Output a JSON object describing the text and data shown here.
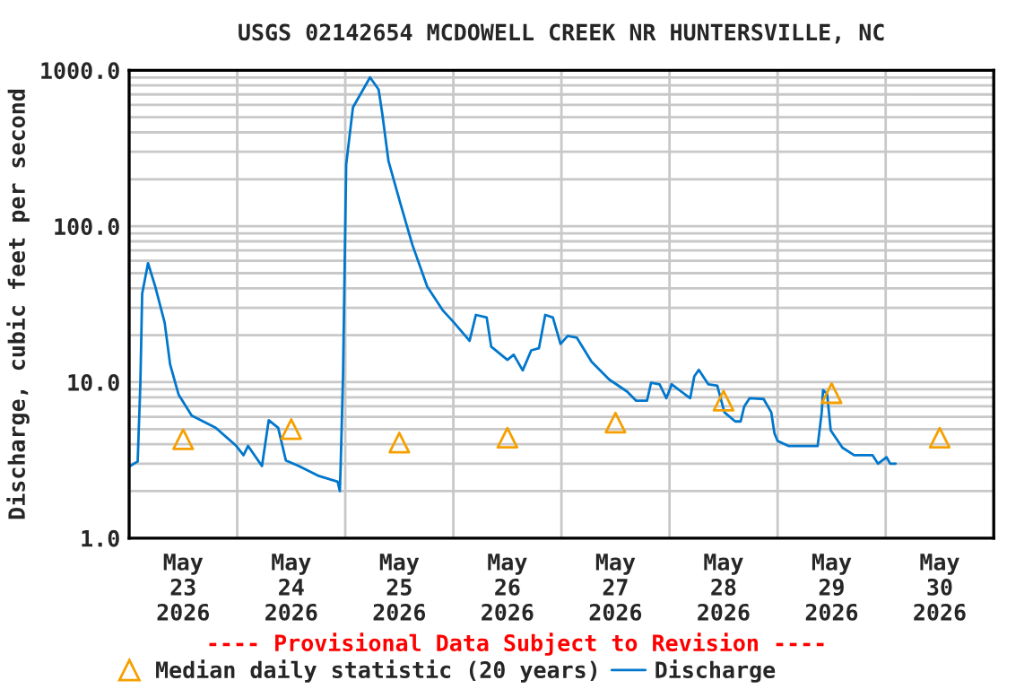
{
  "chart_data": {
    "type": "line",
    "title": "USGS 02142654 MCDOWELL CREEK NR HUNTERSVILLE, NC",
    "ylabel": "Discharge, cubic feet per second",
    "annotations": [
      "---- Provisional Data Subject to Revision ----"
    ],
    "log": "y",
    "xlim": [
      "2026-05-23T00:00",
      "2026-05-31T00:00"
    ],
    "xticks": [
      {
        "value": "2026-05-23T00:00",
        "label": null
      },
      {
        "value": "2026-05-23T12:00",
        "label": "May\n23\n2026"
      },
      {
        "value": "2026-05-24T00:00",
        "label": null
      },
      {
        "value": "2026-05-24T12:00",
        "label": "May\n24\n2026"
      },
      {
        "value": "2026-05-25T00:00",
        "label": null
      },
      {
        "value": "2026-05-25T12:00",
        "label": "May\n25\n2026"
      },
      {
        "value": "2026-05-26T00:00",
        "label": null
      },
      {
        "value": "2026-05-26T12:00",
        "label": "May\n26\n2026"
      },
      {
        "value": "2026-05-27T00:00",
        "label": null
      },
      {
        "value": "2026-05-27T12:00",
        "label": "May\n27\n2026"
      },
      {
        "value": "2026-05-28T00:00",
        "label": null
      },
      {
        "value": "2026-05-28T12:00",
        "label": "May\n28\n2026"
      },
      {
        "value": "2026-05-29T00:00",
        "label": null
      },
      {
        "value": "2026-05-29T12:00",
        "label": "May\n29\n2026"
      },
      {
        "value": "2026-05-30T00:00",
        "label": null
      },
      {
        "value": "2026-05-30T12:00",
        "label": "May\n30\n2026"
      },
      {
        "value": "2026-05-31T00:00",
        "label": null
      }
    ],
    "ylim": [
      1,
      1000
    ],
    "yticks": [
      {
        "value": 1,
        "label": "1.0"
      },
      {
        "value": 10,
        "label": "10.0"
      },
      {
        "value": 100,
        "label": "100.0"
      },
      {
        "value": 1000,
        "label": "1000.0"
      }
    ],
    "grid": true,
    "legend": "bottom",
    "series": [
      {
        "name": "Median daily statistic (20 years)",
        "type": "scatter",
        "marker": "triangle",
        "color": "#f5a000",
        "x": [
          "2026-05-23T12:00",
          "2026-05-24T12:00",
          "2026-05-25T12:00",
          "2026-05-26T12:00",
          "2026-05-27T12:00",
          "2026-05-28T12:00",
          "2026-05-29T12:00",
          "2026-05-30T12:00"
        ],
        "values": [
          4.3,
          5.0,
          4.1,
          4.4,
          5.5,
          7.6,
          8.5,
          4.4
        ]
      },
      {
        "name": "Discharge",
        "color": "#0077cc",
        "x": [
          "2026-05-23T00:12",
          "2026-05-23T01:54",
          "2026-05-23T02:30",
          "2026-05-23T02:54",
          "2026-05-23T04:12",
          "2026-05-23T05:48",
          "2026-05-23T07:54",
          "2026-05-23T09:06",
          "2026-05-23T11:00",
          "2026-05-23T13:54",
          "2026-05-23T19:12",
          "2026-05-23T23:48",
          "2026-05-24T01:24",
          "2026-05-24T02:24",
          "2026-05-24T05:30",
          "2026-05-24T07:00",
          "2026-05-24T09:06",
          "2026-05-24T10:48",
          "2026-05-24T13:42",
          "2026-05-24T17:00",
          "2026-05-24T18:12",
          "2026-05-24T22:18",
          "2026-05-24T22:48",
          "2026-05-24T23:00",
          "2026-05-24T23:30",
          "2026-05-25T00:12",
          "2026-05-25T01:42",
          "2026-05-25T05:30",
          "2026-05-25T07:24",
          "2026-05-25T08:12",
          "2026-05-25T09:36",
          "2026-05-25T12:12",
          "2026-05-25T14:54",
          "2026-05-25T18:12",
          "2026-05-25T21:36",
          "2026-05-26T00:12",
          "2026-05-26T03:36",
          "2026-05-26T05:00",
          "2026-05-26T07:24",
          "2026-05-26T08:24",
          "2026-05-26T12:00",
          "2026-05-26T13:24",
          "2026-05-26T15:24",
          "2026-05-26T17:18",
          "2026-05-26T19:00",
          "2026-05-26T20:24",
          "2026-05-26T22:06",
          "2026-05-26T23:48",
          "2026-05-27T01:24",
          "2026-05-27T03:24",
          "2026-05-27T06:42",
          "2026-05-27T10:36",
          "2026-05-27T14:36",
          "2026-05-27T16:36",
          "2026-05-27T19:00",
          "2026-05-27T19:54",
          "2026-05-27T21:48",
          "2026-05-27T23:18",
          "2026-05-28T00:30",
          "2026-05-28T02:36",
          "2026-05-28T04:36",
          "2026-05-28T05:30",
          "2026-05-28T06:30",
          "2026-05-28T08:36",
          "2026-05-28T10:36",
          "2026-05-28T12:12",
          "2026-05-28T14:36",
          "2026-05-28T15:48",
          "2026-05-28T16:36",
          "2026-05-28T17:48",
          "2026-05-28T20:54",
          "2026-05-28T22:36",
          "2026-05-28T23:18",
          "2026-05-29T00:00",
          "2026-05-29T02:24",
          "2026-05-29T08:54",
          "2026-05-29T09:48",
          "2026-05-29T10:06",
          "2026-05-29T11:00",
          "2026-05-29T11:48",
          "2026-05-29T14:24",
          "2026-05-29T17:00",
          "2026-05-29T21:06",
          "2026-05-29T22:18",
          "2026-05-30T00:12",
          "2026-05-30T01:00",
          "2026-05-30T02:12"
        ],
        "values": [
          2.9,
          3.1,
          9.9,
          37,
          58,
          41,
          24,
          13,
          8.3,
          6.1,
          5.1,
          3.9,
          3.4,
          3.9,
          2.9,
          5.7,
          5.1,
          3.15,
          2.9,
          2.6,
          2.5,
          2.3,
          2.0,
          3.1,
          10.9,
          249,
          578,
          900,
          753,
          530,
          261,
          141,
          76,
          41,
          29,
          24,
          18.4,
          27,
          26,
          16.9,
          13.9,
          15,
          11.9,
          16,
          16.5,
          27,
          26,
          17.6,
          19.8,
          19.3,
          13.5,
          10.4,
          8.7,
          7.6,
          7.6,
          9.9,
          9.7,
          7.9,
          9.7,
          8.7,
          7.9,
          10.9,
          12,
          9.7,
          9.5,
          6.4,
          5.6,
          5.6,
          7.0,
          7.9,
          7.8,
          6.4,
          4.7,
          4.2,
          3.9,
          3.9,
          6.4,
          8.9,
          8.4,
          4.9,
          3.8,
          3.4,
          3.4,
          3.0,
          3.3,
          3.0,
          3.0
        ]
      }
    ]
  }
}
